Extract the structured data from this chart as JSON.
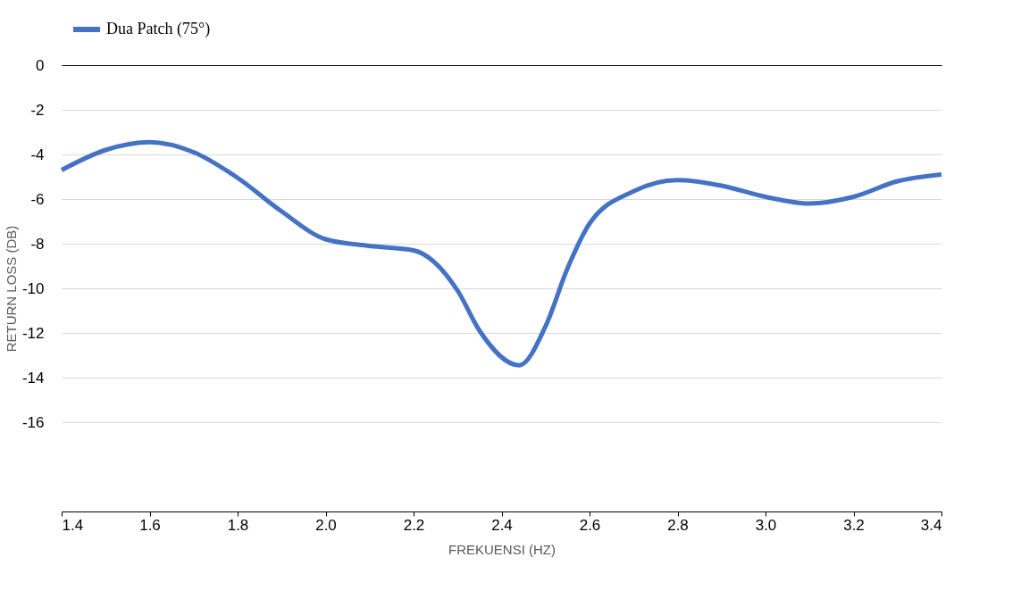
{
  "chart_data": {
    "type": "line",
    "xlabel": "FREKUENSI (HZ)",
    "ylabel": "RETURN LOSS (DB)",
    "x": [
      1.4,
      1.5,
      1.6,
      1.7,
      1.8,
      1.9,
      2.0,
      2.1,
      2.2,
      2.3,
      2.35,
      2.44,
      2.5,
      2.55,
      2.6,
      2.7,
      2.8,
      2.9,
      3.0,
      3.1,
      3.2,
      3.3,
      3.4
    ],
    "series": [
      {
        "name": "Dua Patch (75°)",
        "color": "#4472c4",
        "values": [
          -4.7,
          -3.8,
          -3.45,
          -3.9,
          -5.05,
          -6.55,
          -7.8,
          -8.1,
          -8.3,
          -10.1,
          -11.9,
          -13.45,
          -11.7,
          -9.1,
          -7.1,
          -5.65,
          -5.15,
          -5.4,
          -5.9,
          -6.2,
          -5.9,
          -5.2,
          -4.9
        ]
      }
    ],
    "xlim": [
      1.4,
      3.4
    ],
    "xticks": [
      1.4,
      1.6,
      1.8,
      {
        "value": 2.0,
        "label": "2.0"
      },
      2.2,
      2.4,
      2.6,
      2.8,
      {
        "value": 3.0,
        "label": "3.0"
      },
      3.2,
      3.4
    ],
    "ylim": [
      -20,
      0
    ],
    "yticks": [
      0,
      -2,
      -4,
      -6,
      -8,
      -10,
      -12,
      -14,
      -16
    ],
    "grid": "y",
    "legend": "top",
    "marker": "none",
    "line_style": "solid"
  }
}
